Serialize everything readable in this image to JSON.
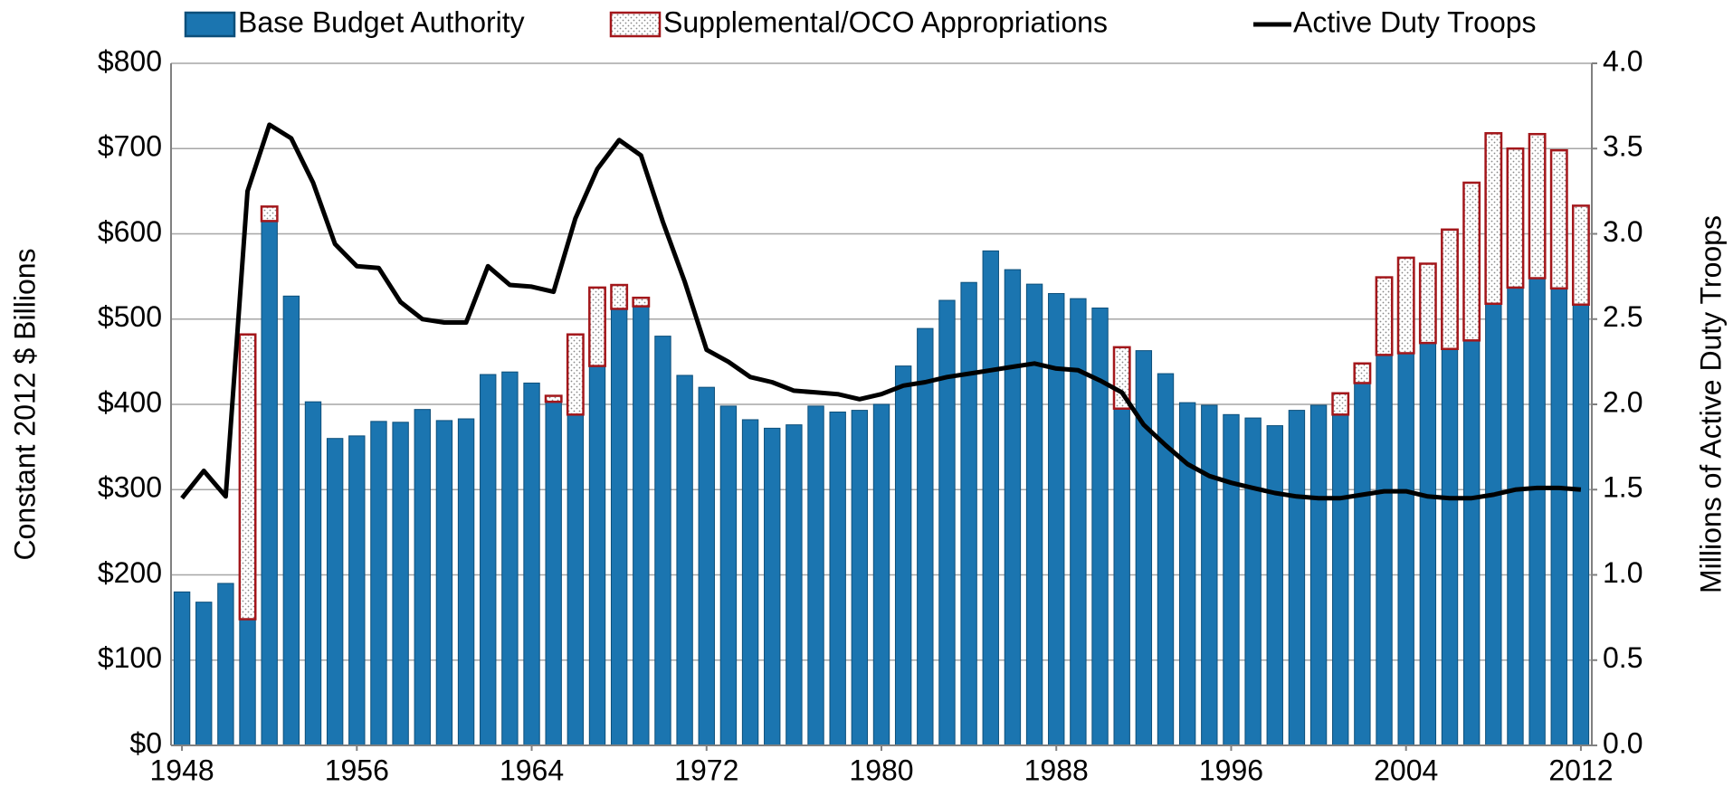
{
  "chart_data": {
    "type": "bar",
    "stacked": true,
    "x": [
      1948,
      1949,
      1950,
      1951,
      1952,
      1953,
      1954,
      1955,
      1956,
      1957,
      1958,
      1959,
      1960,
      1961,
      1962,
      1963,
      1964,
      1965,
      1966,
      1967,
      1968,
      1969,
      1970,
      1971,
      1972,
      1973,
      1974,
      1975,
      1976,
      1977,
      1978,
      1979,
      1980,
      1981,
      1982,
      1983,
      1984,
      1985,
      1986,
      1987,
      1988,
      1989,
      1990,
      1991,
      1992,
      1993,
      1994,
      1995,
      1996,
      1997,
      1998,
      1999,
      2000,
      2001,
      2002,
      2003,
      2004,
      2005,
      2006,
      2007,
      2008,
      2009,
      2010,
      2011,
      2012
    ],
    "series": [
      {
        "name": "Base Budget Authority",
        "type": "bar",
        "color": "#1b75b0",
        "values": [
          180,
          168,
          190,
          148,
          615,
          527,
          403,
          360,
          363,
          380,
          379,
          394,
          381,
          383,
          435,
          438,
          425,
          403,
          388,
          445,
          512,
          515,
          480,
          434,
          420,
          398,
          382,
          372,
          376,
          398,
          391,
          393,
          400,
          445,
          489,
          522,
          543,
          580,
          558,
          541,
          530,
          524,
          513,
          395,
          463,
          436,
          402,
          399,
          388,
          384,
          375,
          393,
          399,
          388,
          425,
          458,
          460,
          472,
          465,
          475,
          518,
          537,
          548,
          536,
          517
        ]
      },
      {
        "name": "Supplemental/OCO Appropriations",
        "type": "bar",
        "color": "#a3171b",
        "values": [
          null,
          null,
          null,
          334,
          17,
          null,
          null,
          null,
          null,
          null,
          null,
          null,
          null,
          null,
          null,
          null,
          null,
          7,
          94,
          92,
          28,
          10,
          null,
          null,
          null,
          null,
          null,
          null,
          null,
          null,
          null,
          null,
          null,
          null,
          null,
          null,
          null,
          null,
          null,
          null,
          null,
          null,
          null,
          72,
          null,
          null,
          null,
          null,
          null,
          null,
          null,
          null,
          null,
          25,
          23,
          91,
          112,
          93,
          140,
          185,
          200,
          163,
          169,
          162,
          116
        ]
      },
      {
        "name": "Active Duty Troops",
        "type": "line",
        "axis": "y2",
        "color": "#000000",
        "values": [
          1.45,
          1.61,
          1.46,
          3.25,
          3.64,
          3.56,
          3.3,
          2.94,
          2.81,
          2.8,
          2.6,
          2.5,
          2.48,
          2.48,
          2.81,
          2.7,
          2.69,
          2.66,
          3.09,
          3.38,
          3.55,
          3.46,
          3.07,
          2.72,
          2.32,
          2.25,
          2.16,
          2.13,
          2.08,
          2.07,
          2.06,
          2.03,
          2.06,
          2.11,
          2.13,
          2.16,
          2.18,
          2.2,
          2.22,
          2.24,
          2.21,
          2.2,
          2.14,
          2.07,
          1.88,
          1.76,
          1.65,
          1.58,
          1.54,
          1.51,
          1.48,
          1.46,
          1.45,
          1.45,
          1.47,
          1.49,
          1.49,
          1.46,
          1.45,
          1.45,
          1.47,
          1.5,
          1.51,
          1.51,
          1.5
        ]
      }
    ],
    "ylabel": "Constant 2012 $ Billions",
    "y2label": "Millions of Active Duty Troops",
    "xlim": [
      1947.5,
      2012.5
    ],
    "xticks": [
      1948,
      1956,
      1964,
      1972,
      1980,
      1988,
      1996,
      2004,
      2012
    ],
    "ylim": [
      0,
      800
    ],
    "yticks": [
      {
        "value": 0,
        "label": "$0"
      },
      {
        "value": 100,
        "label": "$100"
      },
      {
        "value": 200,
        "label": "$200"
      },
      {
        "value": 300,
        "label": "$300"
      },
      {
        "value": 400,
        "label": "$400"
      },
      {
        "value": 500,
        "label": "$500"
      },
      {
        "value": 600,
        "label": "$600"
      },
      {
        "value": 700,
        "label": "$700"
      },
      {
        "value": 800,
        "label": "$800"
      }
    ],
    "y2lim": [
      0,
      4
    ],
    "y2ticks": [
      {
        "value": 0,
        "label": "0.0"
      },
      0.5,
      {
        "value": 1,
        "label": "1.0"
      },
      1.5,
      {
        "value": 2,
        "label": "2.0"
      },
      2.5,
      {
        "value": 3,
        "label": "3.0"
      },
      3.5,
      {
        "value": 4,
        "label": "4.0"
      }
    ],
    "grid": true,
    "legend": "top"
  }
}
